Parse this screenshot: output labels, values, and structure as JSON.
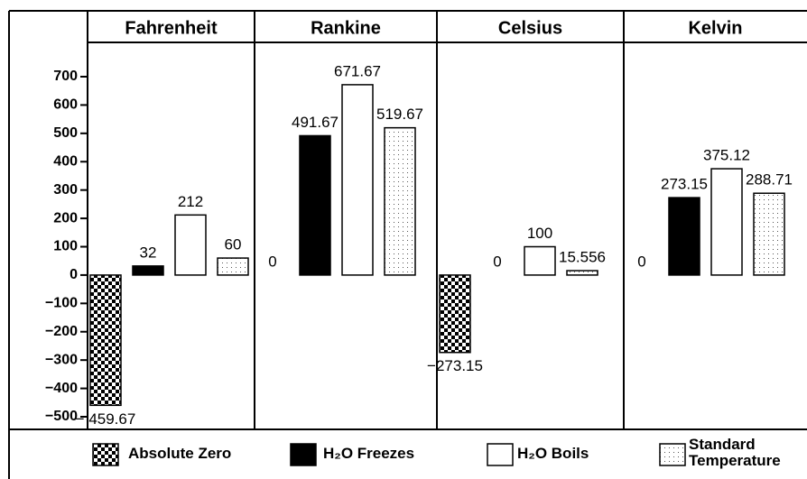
{
  "chart_data": {
    "type": "bar",
    "categories": [
      "Fahrenheit",
      "Rankine",
      "Celsius",
      "Kelvin"
    ],
    "series": [
      {
        "name": "Absolute Zero",
        "color": "#000000",
        "pattern": "checker",
        "values": [
          -459.67,
          0,
          -273.15,
          0
        ],
        "value_labels": [
          "− 459.67",
          "0",
          "−273.15",
          "0"
        ]
      },
      {
        "name": "H₂O Freezes",
        "color": "#000000",
        "values": [
          32,
          491.67,
          0,
          273.15
        ]
      },
      {
        "name": "H₂O  Boils",
        "color": "#ffffff",
        "values": [
          212,
          671.67,
          100,
          375.12
        ]
      },
      {
        "name": "Standard Temperature",
        "color": "#ffffff",
        "pattern": "dots",
        "values": [
          60,
          519.67,
          15.556,
          288.71
        ]
      }
    ],
    "ylim": [
      -500,
      700
    ],
    "yticks": [
      700,
      600,
      500,
      400,
      300,
      200,
      100,
      0,
      {
        "value": -100,
        "label": "−100"
      },
      {
        "value": -200,
        "label": "−200"
      },
      {
        "value": -300,
        "label": "−300"
      },
      {
        "value": -400,
        "label": "−400"
      },
      {
        "value": -500,
        "label": "−500"
      }
    ]
  }
}
